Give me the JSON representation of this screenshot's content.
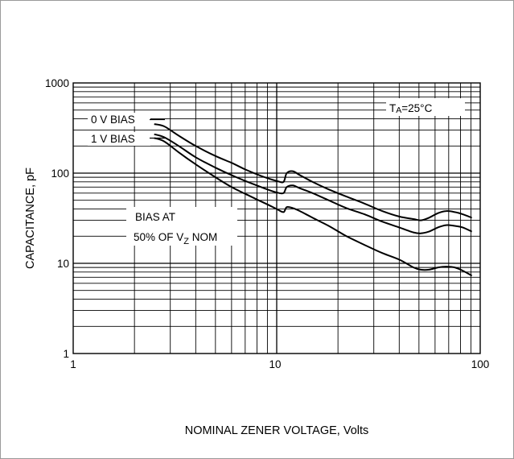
{
  "chart_data": {
    "type": "line",
    "title": "",
    "xlabel": "NOMINAL ZENER VOLTAGE, Volts",
    "ylabel": "CAPACITANCE, pF",
    "xscale": "log",
    "yscale": "log",
    "xlim": [
      1,
      100
    ],
    "ylim": [
      1,
      1000
    ],
    "grid": true,
    "x_ticks": [
      "1",
      "10",
      "100"
    ],
    "y_ticks": [
      "1",
      "10",
      "100",
      "1000"
    ],
    "series": [
      {
        "name": "0 V BIAS",
        "x": [
          2.5,
          2.8,
          3.3,
          4,
          5,
          6,
          7,
          8,
          9,
          10,
          10.8,
          11.2,
          12,
          13,
          15,
          18,
          22,
          27,
          33,
          40,
          47,
          51,
          56,
          62,
          68,
          75,
          82,
          91
        ],
        "values": [
          350,
          330,
          260,
          200,
          155,
          130,
          110,
          97,
          88,
          82,
          80,
          100,
          105,
          95,
          80,
          66,
          55,
          46,
          38,
          33,
          31,
          30,
          32,
          36,
          38,
          37,
          35,
          32
        ]
      },
      {
        "name": "1 V BIAS",
        "x": [
          2.5,
          2.8,
          3.3,
          4,
          5,
          6,
          7,
          8,
          9,
          10,
          10.8,
          11.2,
          12,
          13,
          15,
          18,
          22,
          27,
          33,
          40,
          47,
          51,
          56,
          62,
          68,
          75,
          82,
          91
        ],
        "values": [
          270,
          250,
          200,
          150,
          115,
          95,
          82,
          73,
          66,
          61,
          60,
          70,
          73,
          68,
          60,
          50,
          41,
          35,
          29,
          25,
          22,
          21.5,
          22.5,
          25,
          26.5,
          26,
          25,
          22.5
        ]
      },
      {
        "name": "BIAS AT 50% OF VZ NOM",
        "x": [
          2.5,
          2.8,
          3.3,
          4,
          5,
          6,
          7,
          8,
          9,
          10,
          10.8,
          11.2,
          12,
          13,
          15,
          18,
          22,
          27,
          33,
          40,
          47,
          51,
          56,
          62,
          68,
          75,
          82,
          91
        ],
        "values": [
          245,
          225,
          170,
          125,
          90,
          70,
          59,
          51,
          45,
          40,
          37,
          42,
          41,
          38,
          32,
          26,
          20,
          16,
          13,
          11,
          9,
          8.5,
          8.5,
          9,
          9.2,
          9,
          8.3,
          7.3
        ]
      }
    ],
    "annotations": {
      "bias0": "0 V BIAS",
      "bias1": "1 V BIAS",
      "bias50_line1": "BIAS AT",
      "bias50_line2_pre": "50% OF V",
      "bias50_line2_sub": "Z",
      "bias50_line2_post": " NOM",
      "ta_main": "T",
      "ta_sub": "A",
      "ta_rest": "=25°C"
    },
    "colors": {
      "line": "#000000",
      "grid": "#000000",
      "background": "#ffffff",
      "frame": "#9a9a9a"
    }
  }
}
